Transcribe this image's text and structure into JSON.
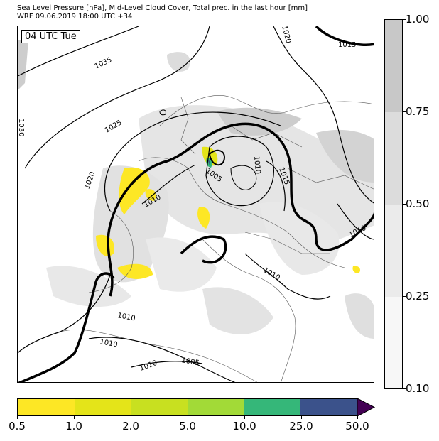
{
  "header": {
    "line1": "Sea Level Pressure [hPa], Mid-Level Cloud Cover, Total prec. in the last hour [mm]",
    "line2": "WRF 09.06.2019 18:00 UTC +34"
  },
  "map": {
    "time_label": "04 UTC Tue",
    "isobar_labels": [
      "1035",
      "1030",
      "1025",
      "1020",
      "1020",
      "1015",
      "1015",
      "1010",
      "1010",
      "1010",
      "1010",
      "1010",
      "1010",
      "1005",
      "1005",
      "1010"
    ]
  },
  "cloud_scale": {
    "ticks": [
      "1.00",
      "0.75",
      "0.50",
      "0.25",
      "0.10"
    ],
    "colors": [
      "#c8c8c8",
      "#dcdcdc",
      "#ebebeb",
      "#f7f7f7"
    ]
  },
  "precip_scale": {
    "ticks": [
      "0.5",
      "1.0",
      "2.0",
      "5.0",
      "10.0",
      "25.0",
      "50.0"
    ],
    "colors": [
      "#fde725",
      "#e4e419",
      "#c8e020",
      "#a2da37",
      "#35b779",
      "#3b528b",
      "#440154"
    ]
  }
}
